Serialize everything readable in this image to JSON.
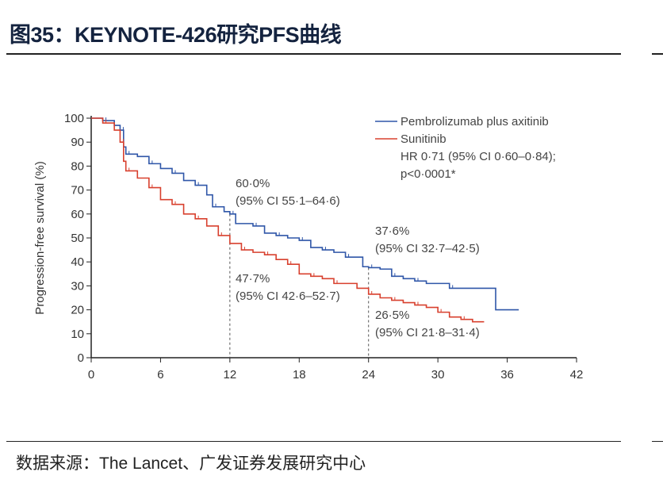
{
  "header": {
    "title": "图35：KEYNOTE-426研究PFS曲线"
  },
  "footer": {
    "source": "数据来源：The Lancet、广发证券发展研究中心"
  },
  "chart_data": {
    "type": "line",
    "step": true,
    "xlabel": "",
    "ylabel": "Progression-free survival (%)",
    "xlim": [
      0,
      42
    ],
    "ylim": [
      0,
      100
    ],
    "xticks": [
      0,
      6,
      12,
      18,
      24,
      30,
      36,
      42
    ],
    "yticks": [
      0,
      10,
      20,
      30,
      40,
      50,
      60,
      70,
      80,
      90,
      100
    ],
    "legend_position": "top-right",
    "legend_note": [
      "HR 0·71 (95% CI 0·60–0·84);",
      "p<0·0001*"
    ],
    "series": [
      {
        "name": "Pembrolizumab plus axitinib",
        "color": "#2f56a8",
        "x": [
          0,
          1,
          2,
          2.5,
          2.8,
          3,
          4,
          5,
          6,
          7,
          8,
          9,
          10,
          10.5,
          11.5,
          12,
          12.5,
          14,
          15,
          16,
          17,
          18,
          19,
          20,
          21,
          22,
          23.5,
          24,
          25,
          26,
          27,
          28,
          29,
          31,
          35,
          37
        ],
        "y": [
          100,
          99,
          97,
          95,
          88,
          85,
          84,
          81,
          79,
          77,
          74,
          72,
          68,
          63,
          61,
          60,
          56,
          55,
          52,
          51,
          50,
          49,
          46,
          45,
          44,
          42,
          38,
          37.6,
          37,
          34,
          33,
          32,
          31,
          29,
          20,
          20
        ]
      },
      {
        "name": "Sunitinib",
        "color": "#d8402e",
        "x": [
          0,
          1,
          2,
          2.5,
          2.8,
          3,
          4,
          5,
          6,
          7,
          8,
          9,
          10,
          11,
          12,
          13,
          14,
          15,
          16,
          17,
          18,
          19,
          20,
          21,
          23,
          24,
          25,
          26,
          27,
          28,
          29,
          30,
          31,
          32,
          33,
          34
        ],
        "y": [
          100,
          98,
          95,
          90,
          82,
          78,
          75,
          71,
          66,
          64,
          60,
          58,
          55,
          51,
          47.7,
          45,
          44,
          43,
          41,
          39,
          35,
          34,
          33,
          31,
          29,
          26.5,
          25,
          24,
          23,
          22,
          21,
          19,
          17,
          16,
          15,
          15
        ]
      }
    ],
    "reference_lines_x": [
      12,
      24
    ],
    "annotations": [
      {
        "x": 12,
        "series": "Pembrolizumab plus axitinib",
        "lines": [
          "60·0%",
          "(95% CI 55·1–64·6)"
        ]
      },
      {
        "x": 12,
        "series": "Sunitinib",
        "lines": [
          "47·7%",
          "(95% CI 42·6–52·7)"
        ]
      },
      {
        "x": 24,
        "series": "Pembrolizumab plus axitinib",
        "lines": [
          "37·6%",
          "(95% CI 32·7–42·5)"
        ]
      },
      {
        "x": 24,
        "series": "Sunitinib",
        "lines": [
          "26·5%",
          "(95% CI 21·8–31·4)"
        ]
      }
    ]
  }
}
